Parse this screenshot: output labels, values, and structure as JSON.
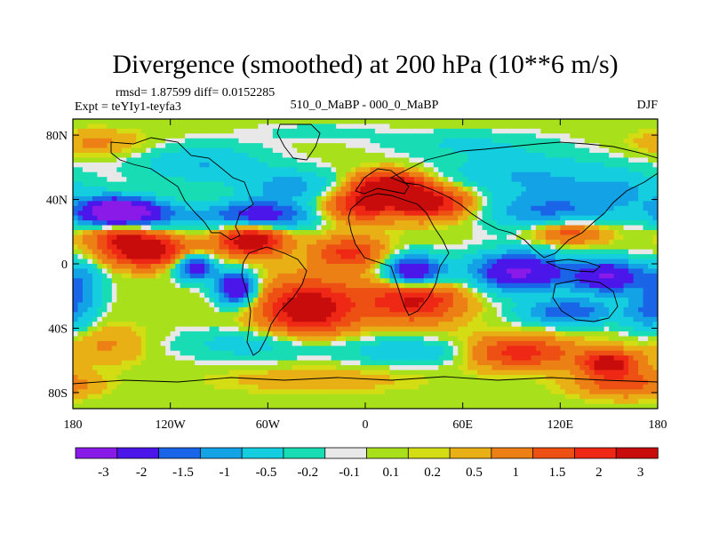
{
  "chart_data": {
    "type": "heatmap",
    "title": "Divergence (smoothed) at 200 hPa (10**6 m/s)",
    "stats_text": "rmsd= 1.87599 diff= 0.0152285",
    "experiment": "Expt = teYIy1-teyfa3",
    "comparison": "510_0_MaBP - 000_0_MaBP",
    "season": "DJF",
    "x_ticks": [
      {
        "value": -180,
        "label": "180"
      },
      {
        "value": -120,
        "label": "120W"
      },
      {
        "value": -60,
        "label": "60W"
      },
      {
        "value": 0,
        "label": "0"
      },
      {
        "value": 60,
        "label": "60E"
      },
      {
        "value": 120,
        "label": "120E"
      },
      {
        "value": 180,
        "label": "180"
      }
    ],
    "y_ticks": [
      {
        "value": 80,
        "label": "80N"
      },
      {
        "value": 40,
        "label": "40N"
      },
      {
        "value": 0,
        "label": "0"
      },
      {
        "value": -40,
        "label": "40S"
      },
      {
        "value": -80,
        "label": "80S"
      }
    ],
    "xlim": [
      -180,
      180
    ],
    "ylim": [
      -90,
      90
    ],
    "contour_levels": [
      "-3",
      "-2",
      "-1.5",
      "-1",
      "-0.5",
      "-0.2",
      "-0.1",
      "0.1",
      "0.2",
      "0.5",
      "1",
      "1.5",
      "2",
      "3"
    ],
    "level_values": [
      -3,
      -2,
      -1.5,
      -1,
      -0.5,
      -0.2,
      -0.1,
      0.1,
      0.2,
      0.5,
      1,
      1.5,
      2,
      3
    ],
    "colors": [
      "#8a1ae8",
      "#4a16ea",
      "#1a64e8",
      "#14a2e6",
      "#14cee0",
      "#18dcb4",
      "#e8e8e8",
      "#a8e01c",
      "#d4dc14",
      "#e8b014",
      "#ec8014",
      "#ee5014",
      "#ee2814",
      "#c80c0c"
    ],
    "anomalies": [
      {
        "lon": -155,
        "lat": 32,
        "value": -3.4,
        "slon": 22,
        "slat": 9
      },
      {
        "lon": -140,
        "lat": 30,
        "value": -2.0,
        "slon": 30,
        "slat": 10
      },
      {
        "lon": -65,
        "lat": 30,
        "value": -2.6,
        "slon": 32,
        "slat": 9
      },
      {
        "lon": -45,
        "lat": 48,
        "value": -1.2,
        "slon": 30,
        "slat": 10
      },
      {
        "lon": -100,
        "lat": 62,
        "value": -1.0,
        "slon": 40,
        "slat": 12
      },
      {
        "lon": 100,
        "lat": 55,
        "value": -1.0,
        "slon": 55,
        "slat": 14
      },
      {
        "lon": 115,
        "lat": 32,
        "value": -1.6,
        "slon": 40,
        "slat": 12
      },
      {
        "lon": 160,
        "lat": 45,
        "value": -0.8,
        "slon": 30,
        "slat": 12
      },
      {
        "lon": 15,
        "lat": 48,
        "value": 2.8,
        "slon": 22,
        "slat": 9
      },
      {
        "lon": 40,
        "lat": 38,
        "value": 2.4,
        "slon": 26,
        "slat": 10
      },
      {
        "lon": -5,
        "lat": 36,
        "value": 1.8,
        "slon": 24,
        "slat": 10
      },
      {
        "lon": -135,
        "lat": 8,
        "value": 2.6,
        "slon": 28,
        "slat": 10
      },
      {
        "lon": -150,
        "lat": 20,
        "value": 2.0,
        "slon": 22,
        "slat": 8
      },
      {
        "lon": -70,
        "lat": 15,
        "value": 2.8,
        "slon": 20,
        "slat": 10
      },
      {
        "lon": -35,
        "lat": -28,
        "value": 2.6,
        "slon": 30,
        "slat": 18
      },
      {
        "lon": 30,
        "lat": -22,
        "value": 2.2,
        "slon": 30,
        "slat": 14
      },
      {
        "lon": 95,
        "lat": -55,
        "value": 1.8,
        "slon": 32,
        "slat": 10
      },
      {
        "lon": 150,
        "lat": -62,
        "value": 2.4,
        "slon": 18,
        "slat": 8
      },
      {
        "lon": -10,
        "lat": 7,
        "value": 1.6,
        "slon": 22,
        "slat": 10
      },
      {
        "lon": 125,
        "lat": 20,
        "value": 1.6,
        "slon": 24,
        "slat": 8
      },
      {
        "lon": -80,
        "lat": -15,
        "value": -3.2,
        "slon": 12,
        "slat": 10
      },
      {
        "lon": -105,
        "lat": -2,
        "value": -2.8,
        "slon": 12,
        "slat": 8
      },
      {
        "lon": 30,
        "lat": -5,
        "value": -3.2,
        "slon": 18,
        "slat": 10
      },
      {
        "lon": 95,
        "lat": -5,
        "value": -3.2,
        "slon": 30,
        "slat": 12
      },
      {
        "lon": 150,
        "lat": -8,
        "value": -3.0,
        "slon": 22,
        "slat": 10
      },
      {
        "lon": 125,
        "lat": -30,
        "value": -2.0,
        "slon": 28,
        "slat": 8
      },
      {
        "lon": 175,
        "lat": -30,
        "value": -1.4,
        "slon": 16,
        "slat": 14
      },
      {
        "lon": -175,
        "lat": -12,
        "value": -1.2,
        "slon": 14,
        "slat": 16
      },
      {
        "lon": -60,
        "lat": -50,
        "value": -0.8,
        "slon": 60,
        "slat": 10
      },
      {
        "lon": 30,
        "lat": -55,
        "value": -0.9,
        "slon": 35,
        "slat": 8
      },
      {
        "lon": -160,
        "lat": -50,
        "value": 0.6,
        "slon": 30,
        "slat": 12
      },
      {
        "lon": 160,
        "lat": -75,
        "value": 1.2,
        "slon": 30,
        "slat": 8
      },
      {
        "lon": -30,
        "lat": -72,
        "value": 0.4,
        "slon": 60,
        "slat": 8
      },
      {
        "lon": -165,
        "lat": 75,
        "value": 0.6,
        "slon": 30,
        "slat": 8
      },
      {
        "lon": 60,
        "lat": 75,
        "value": -0.5,
        "slon": 50,
        "slat": 8
      },
      {
        "lon": -30,
        "lat": 82,
        "value": -0.3,
        "slon": 40,
        "slat": 6
      }
    ]
  }
}
